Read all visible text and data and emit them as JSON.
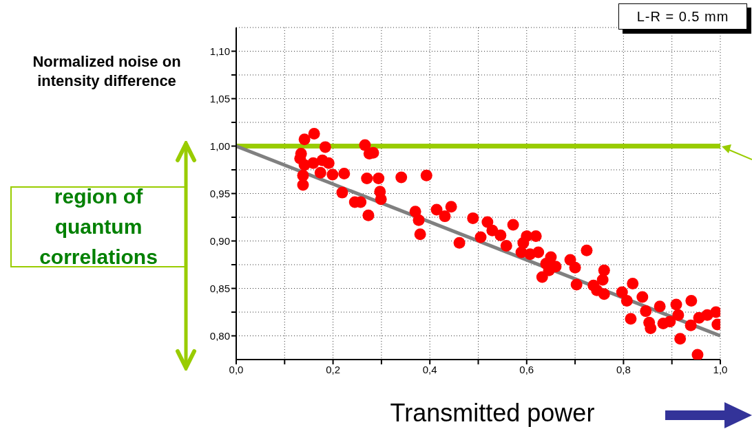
{
  "chart_data": {
    "type": "scatter",
    "xlabel": "Transmitted power",
    "ylabel": "Normalized noise on intensity difference",
    "annotations": [
      "L-R = 0.5 mm",
      "region of quantum correlations"
    ],
    "xlim": [
      0,
      1
    ],
    "ylim": [
      0.775,
      1.125
    ],
    "xticks": [
      {
        "value": 0,
        "label": "0,0"
      },
      {
        "value": 0.1,
        "label": null
      },
      {
        "value": 0.2,
        "label": "0,2"
      },
      {
        "value": 0.3,
        "label": null
      },
      {
        "value": 0.4,
        "label": "0,4"
      },
      {
        "value": 0.5,
        "label": null
      },
      {
        "value": 0.6,
        "label": "0,6"
      },
      {
        "value": 0.7,
        "label": null
      },
      {
        "value": 0.8,
        "label": "0,8"
      },
      {
        "value": 0.9,
        "label": null
      },
      {
        "value": 1,
        "label": "1,0"
      }
    ],
    "yticks": [
      {
        "value": 0.8,
        "label": "0,80"
      },
      {
        "value": 0.825,
        "label": null
      },
      {
        "value": 0.85,
        "label": "0,85"
      },
      {
        "value": 0.875,
        "label": null
      },
      {
        "value": 0.9,
        "label": "0,90"
      },
      {
        "value": 0.925,
        "label": null
      },
      {
        "value": 0.95,
        "label": "0,95"
      },
      {
        "value": 0.975,
        "label": null
      },
      {
        "value": 1,
        "label": "1,00"
      },
      {
        "value": 1.025,
        "label": null
      },
      {
        "value": 1.05,
        "label": "1,05"
      },
      {
        "value": 1.075,
        "label": null
      },
      {
        "value": 1.1,
        "label": "1,10"
      }
    ],
    "grid": true,
    "ref_lines": [
      {
        "axis": "y",
        "value": 1,
        "color": "#99cc00"
      }
    ],
    "series": [
      {
        "marker": "circle",
        "color": "#ff0000",
        "x": [
          0.161,
          0.141,
          0.184,
          0.266,
          0.283,
          0.275,
          0.134,
          0.132,
          0.141,
          0.159,
          0.178,
          0.191,
          0.174,
          0.138,
          0.138,
          0.199,
          0.223,
          0.27,
          0.294,
          0.341,
          0.393,
          0.219,
          0.297,
          0.299,
          0.245,
          0.257,
          0.273,
          0.37,
          0.377,
          0.38,
          0.414,
          0.431,
          0.444,
          0.489,
          0.461,
          0.505,
          0.519,
          0.529,
          0.546,
          0.572,
          0.558,
          0.6,
          0.619,
          0.593,
          0.589,
          0.607,
          0.624,
          0.65,
          0.64,
          0.66,
          0.632,
          0.646,
          0.69,
          0.7,
          0.724,
          0.703,
          0.738,
          0.745,
          0.76,
          0.757,
          0.76,
          0.797,
          0.807,
          0.819,
          0.839,
          0.846,
          0.815,
          0.853,
          0.856,
          0.875,
          0.882,
          0.896,
          0.909,
          0.913,
          0.94,
          0.939,
          0.917,
          0.953,
          0.956,
          0.973,
          0.991,
          0.994
        ],
        "values": [
          1.013,
          1.007,
          0.999,
          1.001,
          0.993,
          0.992,
          0.992,
          0.987,
          0.98,
          0.982,
          0.985,
          0.982,
          0.972,
          0.969,
          0.959,
          0.97,
          0.971,
          0.966,
          0.966,
          0.967,
          0.969,
          0.951,
          0.952,
          0.944,
          0.941,
          0.941,
          0.927,
          0.931,
          0.922,
          0.907,
          0.933,
          0.926,
          0.936,
          0.924,
          0.898,
          0.904,
          0.92,
          0.911,
          0.906,
          0.917,
          0.895,
          0.905,
          0.905,
          0.898,
          0.888,
          0.886,
          0.888,
          0.883,
          0.876,
          0.873,
          0.862,
          0.869,
          0.88,
          0.872,
          0.89,
          0.854,
          0.853,
          0.848,
          0.869,
          0.859,
          0.844,
          0.846,
          0.837,
          0.855,
          0.841,
          0.826,
          0.818,
          0.814,
          0.808,
          0.831,
          0.813,
          0.815,
          0.833,
          0.822,
          0.837,
          0.811,
          0.797,
          0.78,
          0.819,
          0.822,
          0.825,
          0.812
        ]
      },
      {
        "type": "line",
        "color": "#808080",
        "x": [
          0,
          1
        ],
        "values": [
          1,
          0.8
        ]
      }
    ]
  }
}
